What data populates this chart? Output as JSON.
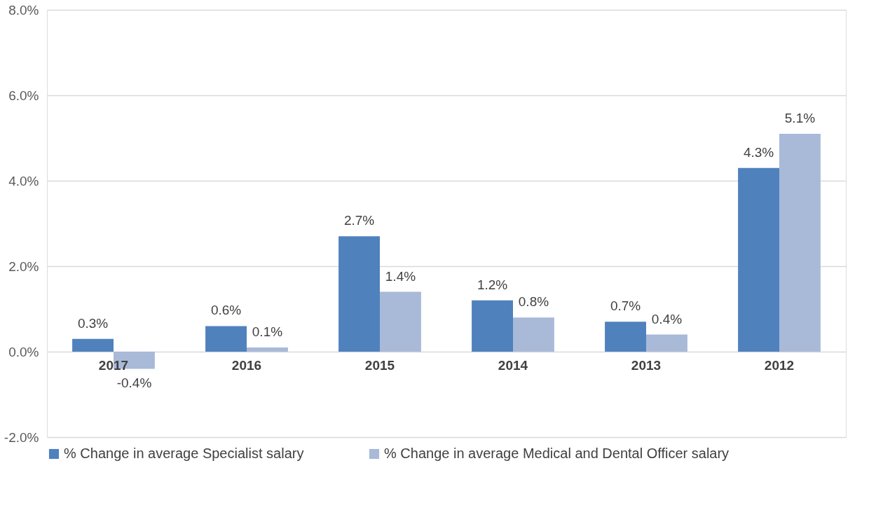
{
  "chart_data": {
    "type": "bar",
    "categories": [
      "2017",
      "2016",
      "2015",
      "2014",
      "2013",
      "2012"
    ],
    "series": [
      {
        "name": "% Change in average Specialist salary",
        "color": "#4f81bd",
        "values": [
          0.3,
          0.6,
          2.7,
          1.2,
          0.7,
          4.3
        ],
        "value_labels": [
          "0.3%",
          "0.6%",
          "2.7%",
          "1.2%",
          "0.7%",
          "4.3%"
        ]
      },
      {
        "name": "% Change in average Medical and Dental Officer salary",
        "color": "#a9b9d8",
        "values": [
          -0.4,
          0.1,
          1.4,
          0.8,
          0.4,
          5.1
        ],
        "value_labels": [
          "-0.4%",
          "0.1%",
          "1.4%",
          "0.8%",
          "0.4%",
          "5.1%"
        ]
      }
    ],
    "ylim": [
      -2,
      8
    ],
    "yticks": [
      {
        "value": -2,
        "label": "-2.0%"
      },
      {
        "value": 0,
        "label": "0.0%"
      },
      {
        "value": 2,
        "label": "2.0%"
      },
      {
        "value": 4,
        "label": "4.0%"
      },
      {
        "value": 6,
        "label": "6.0%"
      },
      {
        "value": 8,
        "label": "8.0%"
      }
    ],
    "grid": "y",
    "legend": "bottom"
  }
}
